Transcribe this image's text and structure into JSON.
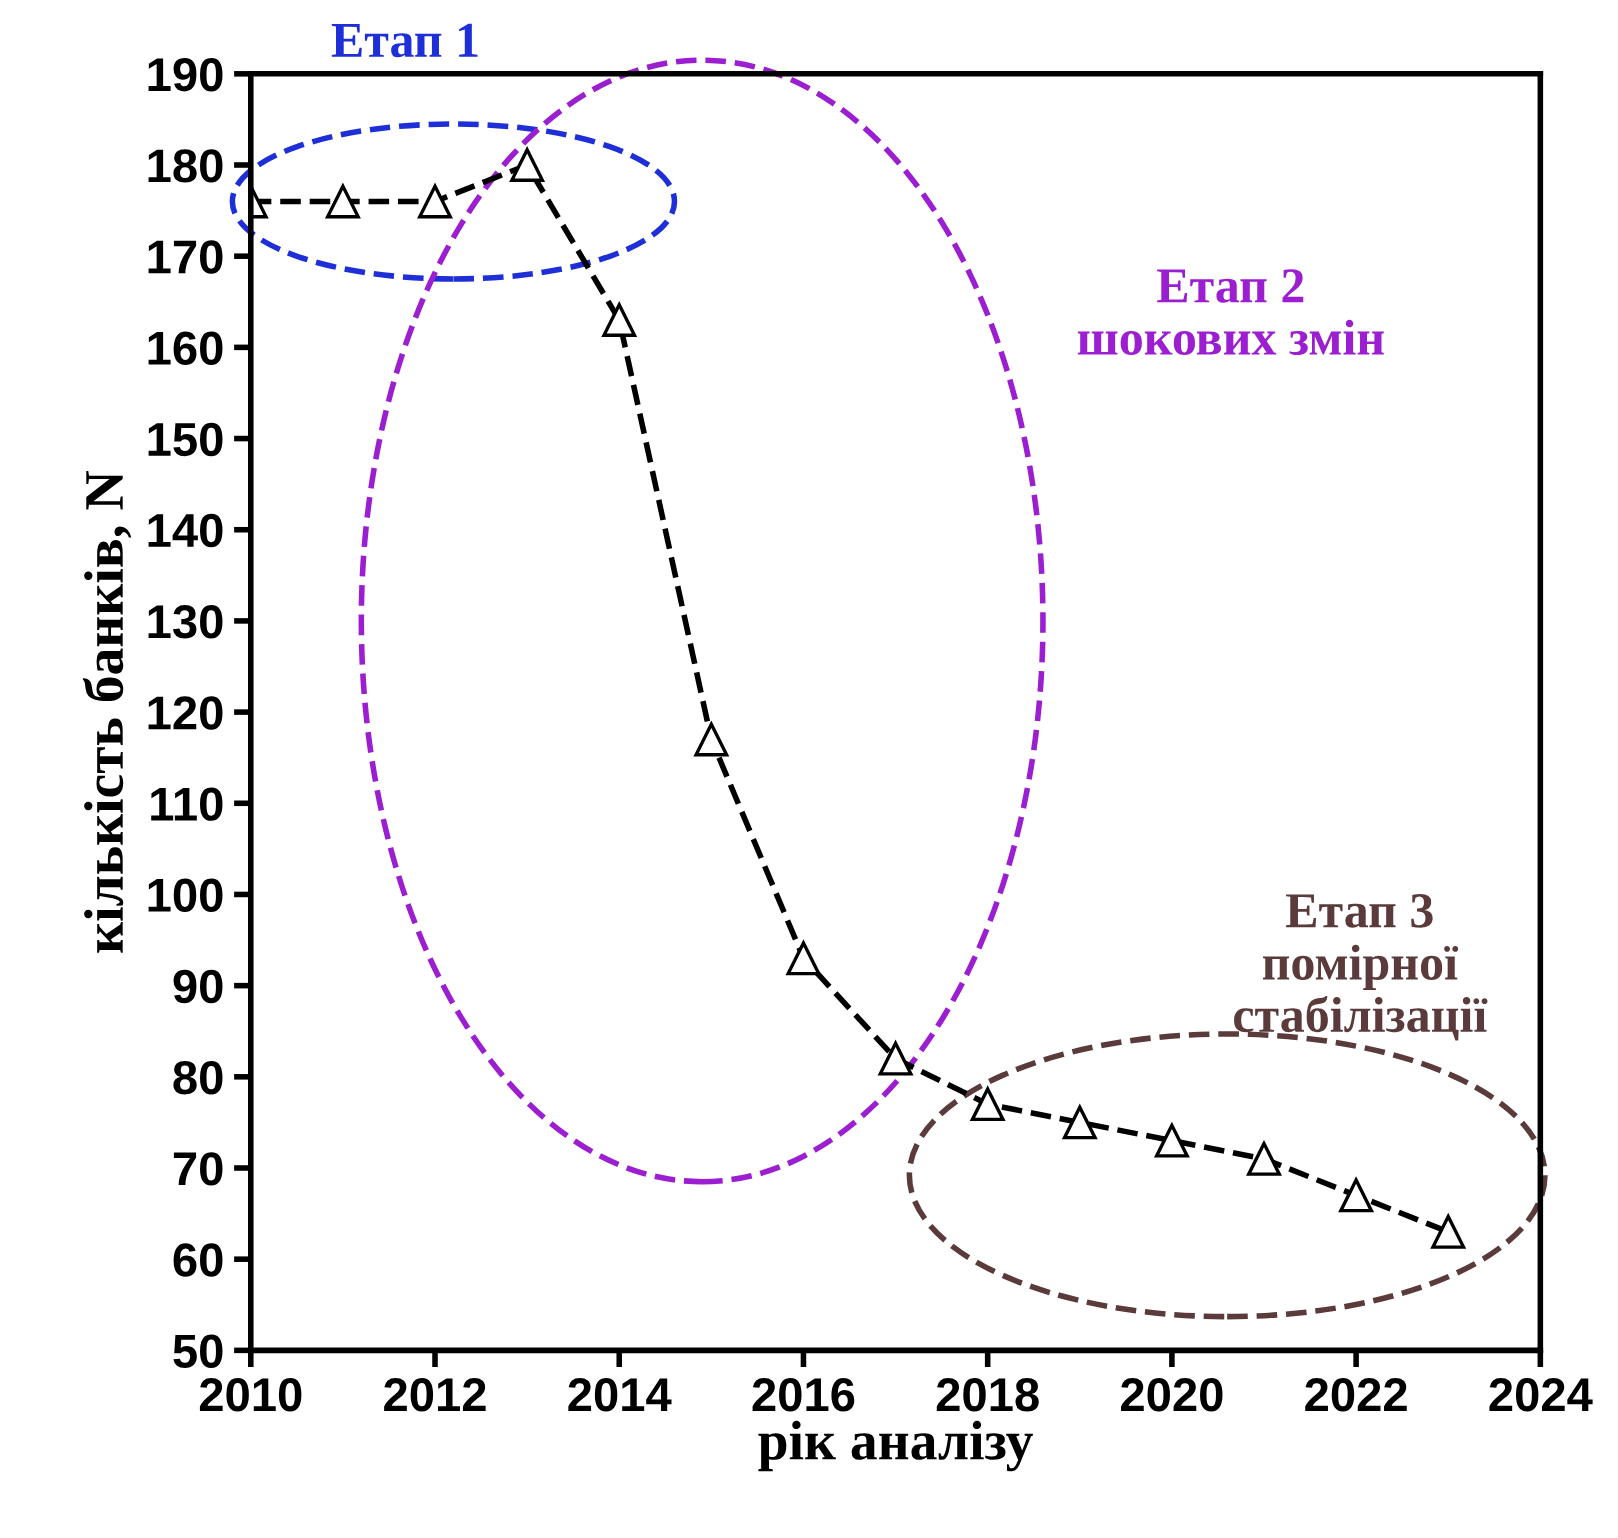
{
  "chart_data": {
    "type": "line",
    "xlabel": "рік аналізу",
    "ylabel": "кількість банків, N",
    "x": [
      2010,
      2011,
      2012,
      2013,
      2014,
      2015,
      2016,
      2017,
      2018,
      2019,
      2020,
      2021,
      2022,
      2023
    ],
    "series": [
      {
        "color": "#000000",
        "values": [
          176,
          176,
          176,
          180,
          163,
          117,
          93,
          82,
          77,
          75,
          73,
          71,
          67,
          63
        ]
      }
    ],
    "marker": "triangle",
    "line_style": "dashed",
    "grid": false,
    "legend": false,
    "xlim": [
      2010,
      2024
    ],
    "xticks": [
      2010,
      2012,
      2014,
      2016,
      2018,
      2020,
      2022,
      2024
    ],
    "ylim": [
      50,
      190
    ],
    "yticks": [
      50,
      60,
      70,
      80,
      90,
      100,
      110,
      120,
      130,
      140,
      150,
      160,
      170,
      180,
      190
    ],
    "annotations": [
      "Етап 1",
      "Етап 2\nшокових змін",
      "Етап 3\nпомірної\nстабілізації"
    ]
  }
}
